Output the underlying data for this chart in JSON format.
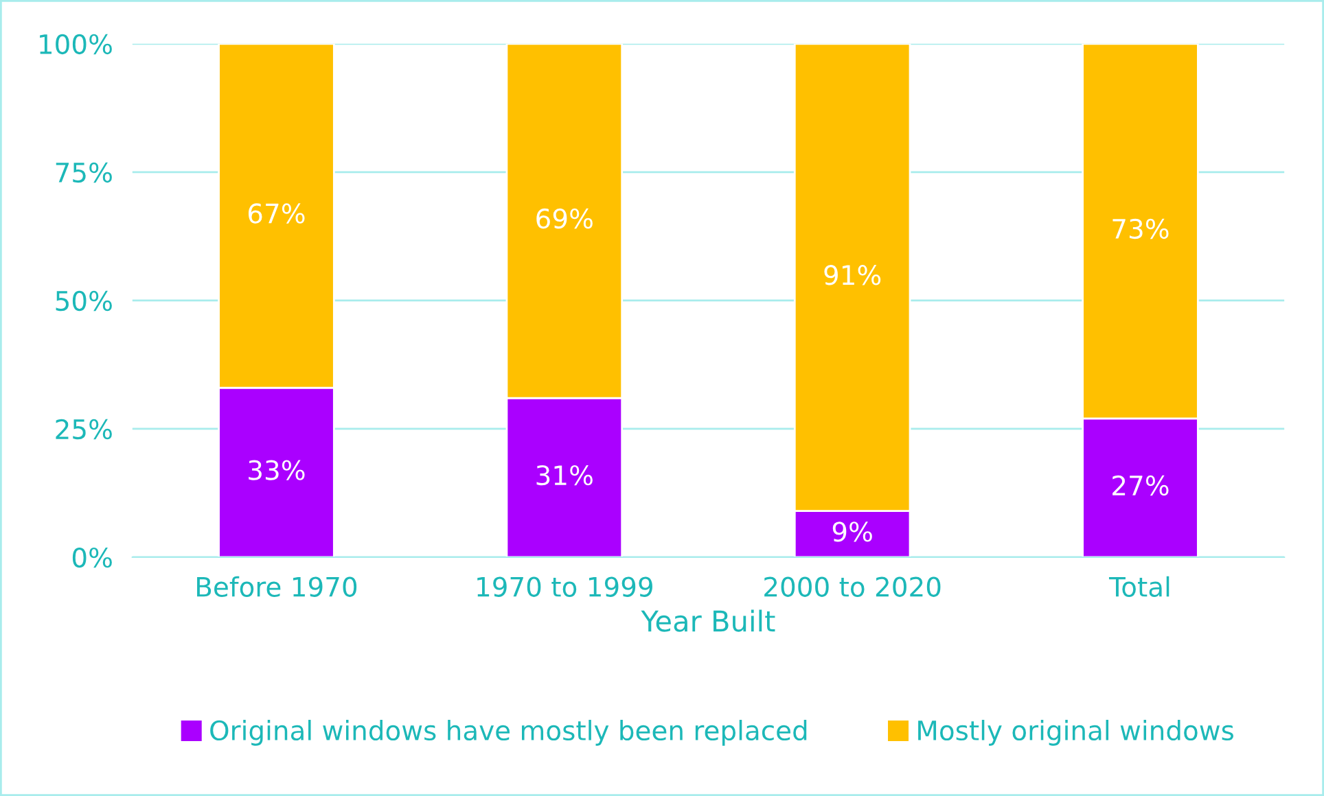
{
  "chart_data": {
    "type": "bar",
    "stacked": true,
    "xlabel": "Year Built",
    "categories": [
      "Before 1970",
      "1970 to 1999",
      "2000 to 2020",
      "Total"
    ],
    "series": [
      {
        "name": "Original windows have mostly been replaced",
        "color": "#aa00ff",
        "values": [
          33,
          31,
          9,
          27
        ],
        "value_labels": [
          "33%",
          "31%",
          "9%",
          "27%"
        ]
      },
      {
        "name": "Mostly original windows",
        "color": "#ffc000",
        "values": [
          67,
          69,
          91,
          73
        ],
        "value_labels": [
          "67%",
          "69%",
          "91%",
          "73%"
        ]
      }
    ],
    "ylim": [
      0,
      100
    ],
    "yticks": [
      {
        "value": 0,
        "label": "0%"
      },
      {
        "value": 25,
        "label": "25%"
      },
      {
        "value": 50,
        "label": "50%"
      },
      {
        "value": 75,
        "label": "75%"
      },
      {
        "value": 100,
        "label": "100%"
      }
    ],
    "grid": "y",
    "legend": "bottom"
  }
}
